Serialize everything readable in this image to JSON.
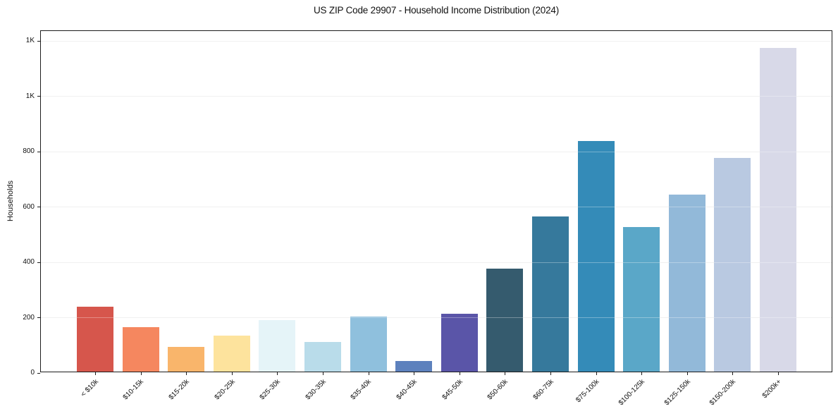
{
  "chart_data": {
    "type": "bar",
    "title": "US ZIP Code 29907 - Household Income Distribution (2024)",
    "xlabel": "",
    "ylabel": "Households",
    "categories": [
      "< $10k",
      "$10-15k",
      "$15-20k",
      "$20-25k",
      "$25-30k",
      "$30-35k",
      "$35-40k",
      "$40-45k",
      "$45-50k",
      "$50-60k",
      "$60-75k",
      "$75-100k",
      "$100-125k",
      "$125-150k",
      "$150-200k",
      "$200k+"
    ],
    "values": [
      235,
      161,
      88,
      129,
      185,
      108,
      198,
      37,
      208,
      373,
      561,
      834,
      522,
      640,
      773,
      1170
    ],
    "bar_colors": [
      "#d6564c",
      "#f5875f",
      "#f9b56b",
      "#fde39d",
      "#e5f4f8",
      "#b9dcea",
      "#8fc0dd",
      "#5d81bd",
      "#5a55a8",
      "#355b6e",
      "#36799c",
      "#348bb8",
      "#5aa7c8",
      "#92b9d9",
      "#b9c9e1",
      "#d8d9e8"
    ],
    "ylim": [
      0,
      1236
    ],
    "ytick_values": [
      0,
      200,
      400,
      600,
      800,
      1000,
      1200
    ],
    "ytick_labels": [
      "0",
      "200",
      "400",
      "600",
      "800",
      "1K",
      "1K"
    ],
    "x_tick_rotation_deg": 45,
    "grid": "horizontal",
    "legend": "none",
    "colors": {
      "background": "#ffffff",
      "gridline": "#e9e9e9",
      "spine": "#1c1c1c",
      "text": "#1a1a1a"
    }
  }
}
